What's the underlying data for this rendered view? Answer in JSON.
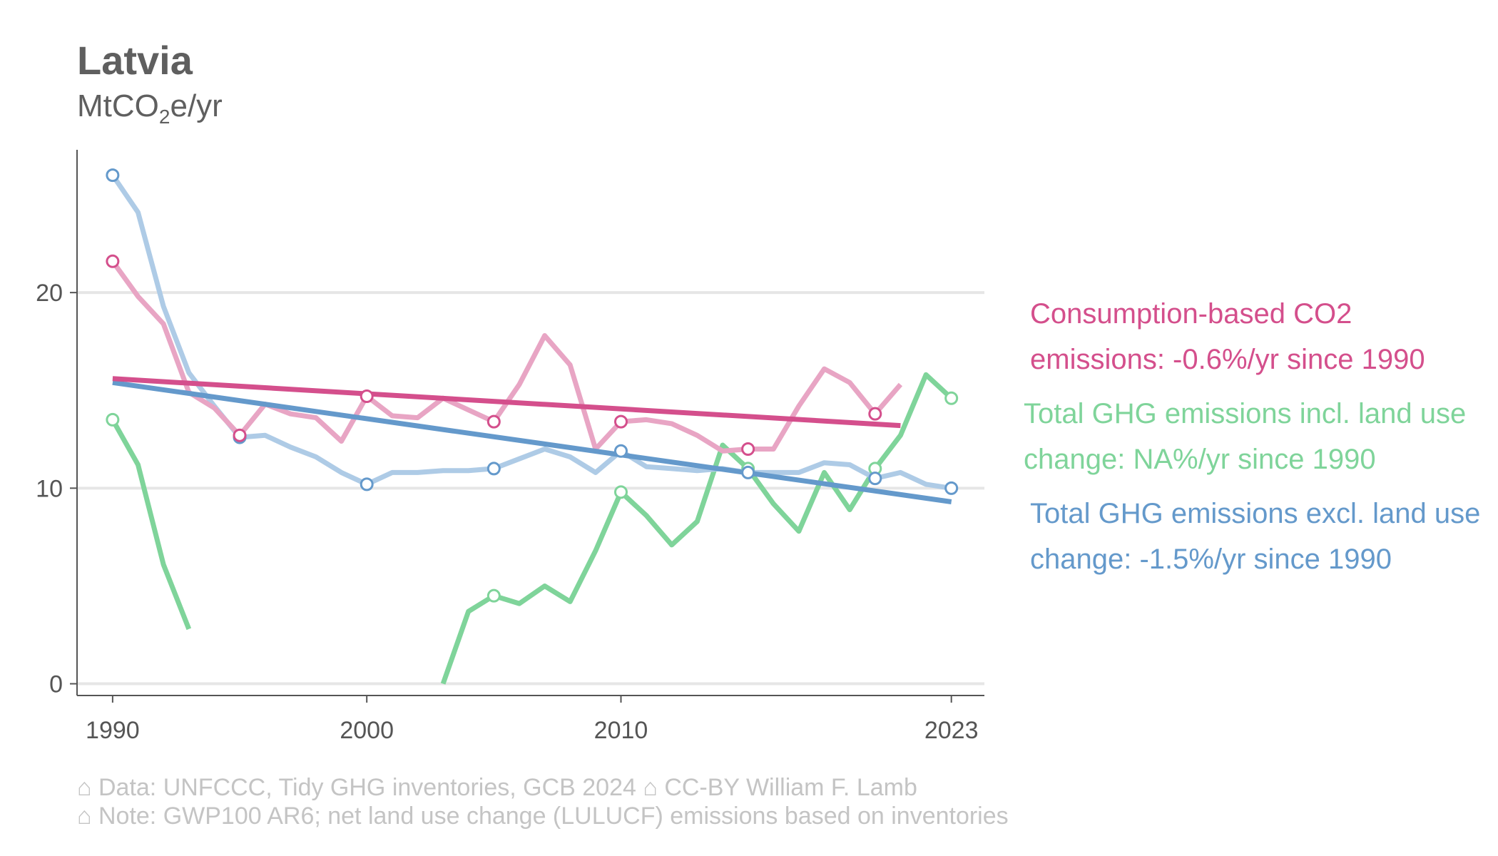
{
  "header": {
    "title": "Latvia",
    "unit_prefix": "MtCO",
    "unit_sub": "2",
    "unit_suffix": "e/yr"
  },
  "footer": {
    "line1": "⌂ Data: UNFCCC, Tidy GHG inventories, GCB 2024    ⌂ CC-BY William F. Lamb",
    "line2": "⌂ Note: GWP100 AR6; net land use change (LULUCF) emissions based on inventories"
  },
  "legend": {
    "consumption": "Consumption-based CO2 emissions: -0.6%/yr since 1990",
    "incl_luc": "Total GHG emissions incl. land use change: NA%/yr since 1990",
    "excl_luc": "Total GHG emissions excl. land use change: -1.5%/yr since 1990"
  },
  "chart_data": {
    "type": "line",
    "title": "Latvia",
    "ylabel": "MtCO2e/yr",
    "xlim": [
      1988.6,
      2024.3
    ],
    "ylim": [
      -0.6,
      27.3
    ],
    "xticks": [
      1990,
      2000,
      2010,
      2023
    ],
    "yticks": [
      0,
      10,
      20
    ],
    "grid": "horizontal",
    "series": [
      {
        "name": "Total GHG emissions incl. land use change",
        "color": "#7fd49a",
        "style": "raw",
        "segments": [
          {
            "x": [
              1990,
              1991,
              1992,
              1993
            ],
            "y": [
              13.5,
              11.2,
              6.1,
              2.8
            ]
          },
          {
            "x": [
              2003,
              2004,
              2005,
              2006,
              2007,
              2008,
              2009,
              2010,
              2011,
              2012,
              2013,
              2014,
              2015,
              2016,
              2017,
              2018,
              2019,
              2020,
              2021,
              2022,
              2023
            ],
            "y": [
              0.0,
              3.7,
              4.5,
              4.1,
              5.0,
              4.2,
              6.8,
              9.8,
              8.6,
              7.1,
              8.3,
              12.2,
              11.0,
              9.2,
              7.8,
              10.8,
              8.9,
              11.0,
              12.7,
              15.8,
              14.6
            ]
          }
        ],
        "markers": [
          [
            1990,
            13.5
          ],
          [
            2005,
            4.5
          ],
          [
            2010,
            9.8
          ],
          [
            2015,
            11.0
          ],
          [
            2020,
            11.0
          ],
          [
            2023,
            14.6
          ]
        ]
      },
      {
        "name": "Total GHG emissions excl. land use change",
        "color": "#aecbe6",
        "marker_color": "#6499cb",
        "style": "raw",
        "segments": [
          {
            "x": [
              1990,
              1991,
              1992,
              1993,
              1994,
              1995,
              1996,
              1997,
              1998,
              1999,
              2000,
              2001,
              2002,
              2003,
              2004,
              2005,
              2006,
              2007,
              2008,
              2009,
              2010,
              2011,
              2012,
              2013,
              2014,
              2015,
              2016,
              2017,
              2018,
              2019,
              2020,
              2021,
              2022,
              2023
            ],
            "y": [
              26.0,
              24.1,
              19.3,
              15.9,
              14.2,
              12.6,
              12.7,
              12.1,
              11.6,
              10.8,
              10.2,
              10.8,
              10.8,
              10.9,
              10.9,
              11.0,
              11.5,
              12.0,
              11.6,
              10.8,
              11.9,
              11.1,
              11.0,
              10.9,
              11.0,
              10.8,
              10.8,
              10.8,
              11.3,
              11.2,
              10.5,
              10.8,
              10.2,
              10.0
            ]
          }
        ],
        "markers": [
          [
            1990,
            26.0
          ],
          [
            1995,
            12.6
          ],
          [
            2000,
            10.2
          ],
          [
            2005,
            11.0
          ],
          [
            2010,
            11.9
          ],
          [
            2015,
            10.8
          ],
          [
            2020,
            10.5
          ],
          [
            2023,
            10.0
          ]
        ]
      },
      {
        "name": "Consumption-based CO2 emissions",
        "color": "#e8a5c4",
        "marker_color": "#d44f8c",
        "style": "raw",
        "segments": [
          {
            "x": [
              1990,
              1991,
              1992,
              1993,
              1994,
              1995,
              1996,
              1997,
              1998,
              1999,
              2000,
              2001,
              2002,
              2003,
              2004,
              2005,
              2006,
              2007,
              2008,
              2009,
              2010,
              2011,
              2012,
              2013,
              2014,
              2015,
              2016,
              2017,
              2018,
              2019,
              2020,
              2021
            ],
            "y": [
              21.6,
              19.8,
              18.4,
              14.9,
              14.1,
              12.7,
              14.3,
              13.8,
              13.6,
              12.4,
              14.7,
              13.7,
              13.6,
              14.6,
              14.0,
              13.4,
              15.3,
              17.8,
              16.3,
              12.0,
              13.4,
              13.5,
              13.3,
              12.7,
              11.9,
              12.0,
              12.0,
              14.2,
              16.1,
              15.4,
              13.8,
              15.3
            ]
          }
        ],
        "markers": [
          [
            1990,
            21.6
          ],
          [
            1995,
            12.7
          ],
          [
            2000,
            14.7
          ],
          [
            2005,
            13.4
          ],
          [
            2010,
            13.4
          ],
          [
            2015,
            12.0
          ],
          [
            2020,
            13.8
          ]
        ]
      },
      {
        "name": "Total GHG emissions excl. land use change (trend)",
        "color": "#6499cb",
        "style": "trend",
        "segments": [
          {
            "x": [
              1990,
              2023
            ],
            "y": [
              15.4,
              9.3
            ]
          }
        ],
        "markers": []
      },
      {
        "name": "Consumption-based CO2 emissions (trend)",
        "color": "#d44f8c",
        "style": "trend",
        "segments": [
          {
            "x": [
              1990,
              2021
            ],
            "y": [
              15.6,
              13.2
            ]
          }
        ],
        "markers": []
      }
    ]
  }
}
